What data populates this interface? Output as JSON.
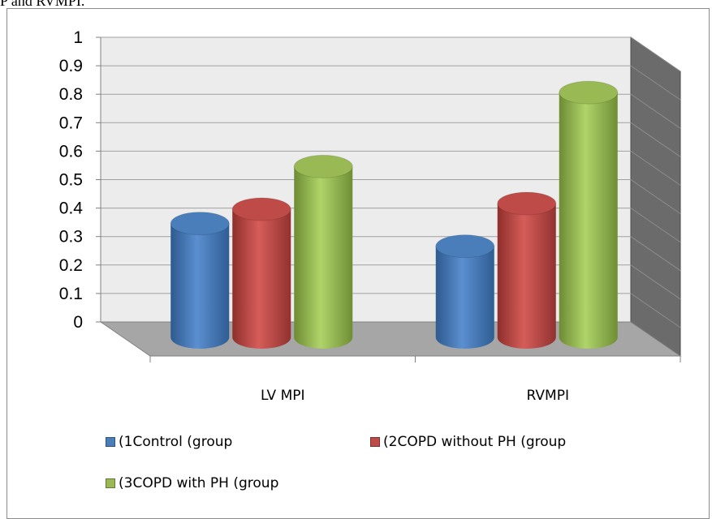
{
  "caption": "P and RVMPI.",
  "chart_data": {
    "type": "bar",
    "style": "3d-cylinder",
    "categories": [
      "LV MPI",
      "RVMPI"
    ],
    "series": [
      {
        "name": "(1Control (group",
        "values": [
          0.4,
          0.32
        ],
        "color": "#4a7ebb"
      },
      {
        "name": "(2COPD without PH (group",
        "values": [
          0.45,
          0.47
        ],
        "color": "#be4b48"
      },
      {
        "name": "(3COPD with PH (group",
        "values": [
          0.6,
          0.86
        ],
        "color": "#98b954"
      }
    ],
    "ylim": [
      0,
      1
    ],
    "yticks": [
      "0",
      "0.1",
      "0.2",
      "0.3",
      "0.4",
      "0.5",
      "0.6",
      "0.7",
      "0.8",
      "0.9",
      "1"
    ],
    "grid": true,
    "legend": "bottom"
  }
}
